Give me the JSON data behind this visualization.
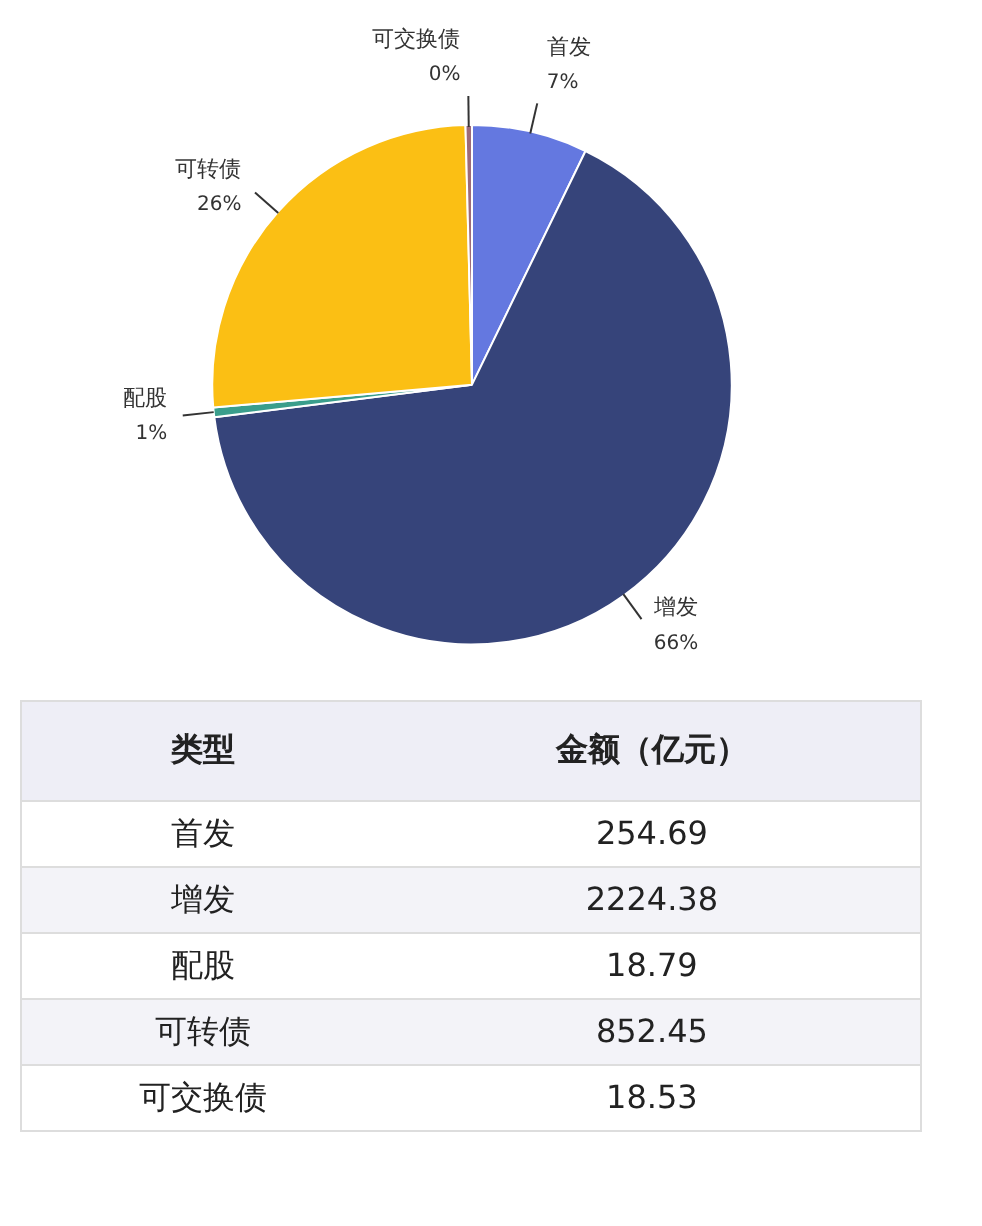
{
  "chart_data": [
    {
      "type": "pie",
      "categories": [
        "首发",
        "增发",
        "配股",
        "可转债",
        "可交换债"
      ],
      "values": [
        7.2,
        65.8,
        0.6,
        26.0,
        0.4
      ],
      "colors": [
        "#6478e0",
        "#36447a",
        "#3a9e8c",
        "#fbbf14",
        "#9c6b7a"
      ],
      "value_labels": [
        "7%",
        "66%",
        "1%",
        "26%",
        "0%"
      ]
    },
    {
      "type": "other",
      "categories": [
        "首发",
        "增发",
        "配股",
        "可转债",
        "可交换债"
      ],
      "values": [
        254.69,
        2224.38,
        18.79,
        852.45,
        18.53
      ],
      "annotations": [
        "类型",
        "金额（亿元）"
      ],
      "data_labels": true
    }
  ]
}
